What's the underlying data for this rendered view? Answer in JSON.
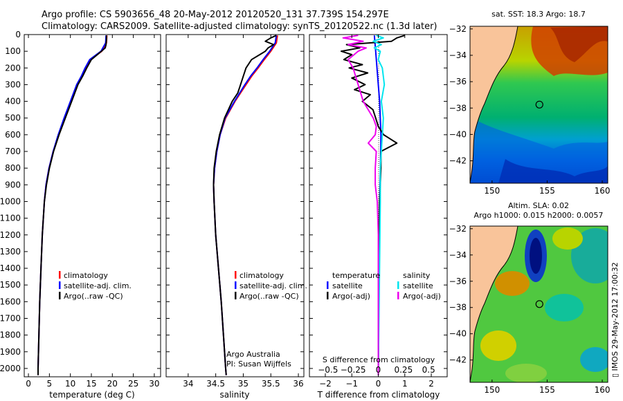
{
  "header": {
    "line1": "Argo profile: CS 5903656_48 20-May-2012 20120520_131 37.739S 154.297E",
    "line2": "Climatology: CARS2009. Satellite-adjusted climatology: synTS_20120522.nc (1.3d later)"
  },
  "colors": {
    "climatology": "#ff0000",
    "satellite": "#0000ff",
    "argo": "#000000",
    "sal_satellite": "#00e5ee",
    "sal_argo": "#ee00ee",
    "land": "#f9c49a"
  },
  "depth_axis": {
    "ylim": [
      0,
      2050
    ],
    "ticks": [
      0,
      100,
      200,
      300,
      400,
      500,
      600,
      700,
      800,
      900,
      1000,
      1100,
      1200,
      1300,
      1400,
      1500,
      1600,
      1700,
      1800,
      1900,
      2000
    ]
  },
  "chart_data": [
    {
      "type": "line",
      "name": "temperature",
      "xlabel": "temperature (deg C)",
      "xlim": [
        -1,
        31.5
      ],
      "xticks": [
        0,
        5,
        10,
        15,
        20,
        25,
        30
      ],
      "legend": {
        "placement": "lower-middle",
        "items": [
          "climatology",
          "satellite-adj. clim.",
          "Argo(..raw -QC)"
        ]
      },
      "series": [
        {
          "name": "climatology",
          "color": "#ff0000",
          "depth": [
            5,
            50,
            100,
            150,
            200,
            250,
            300,
            400,
            500,
            600,
            700,
            800,
            900,
            1000,
            1200,
            1400,
            1600,
            1800,
            2000,
            2040
          ],
          "values": [
            18.7,
            18.6,
            17.5,
            14.8,
            13.6,
            12.7,
            11.6,
            10.1,
            8.6,
            7.2,
            5.9,
            4.9,
            4.2,
            3.8,
            3.3,
            3.0,
            2.7,
            2.5,
            2.3,
            2.3
          ]
        },
        {
          "name": "satellite-adj. clim.",
          "color": "#0000ff",
          "depth": [
            5,
            50,
            100,
            150,
            200,
            250,
            300,
            400,
            500,
            600,
            700,
            800,
            900,
            1000,
            1200,
            1400,
            1600,
            1800,
            2000,
            2040
          ],
          "values": [
            18.5,
            18.4,
            17.3,
            14.6,
            13.5,
            12.6,
            11.5,
            10.0,
            8.5,
            7.1,
            5.9,
            4.9,
            4.2,
            3.8,
            3.3,
            3.0,
            2.7,
            2.5,
            2.3,
            2.3
          ]
        },
        {
          "name": "Argo(..raw -QC)",
          "color": "#000000",
          "depth": [
            5,
            30,
            60,
            80,
            100,
            150,
            200,
            250,
            300,
            400,
            500,
            600,
            700,
            800,
            900,
            1000,
            1200,
            1400,
            1600,
            1800,
            2000,
            2040
          ],
          "values": [
            18.6,
            18.6,
            18.5,
            18.3,
            17.4,
            15.0,
            13.9,
            12.9,
            11.8,
            10.3,
            8.8,
            7.3,
            6.0,
            5.0,
            4.3,
            3.8,
            3.3,
            3.0,
            2.7,
            2.5,
            2.3,
            2.3
          ]
        }
      ]
    },
    {
      "type": "line",
      "name": "salinity",
      "xlabel": "salinity",
      "xlim": [
        33.6,
        36.1
      ],
      "xticks": [
        34,
        34.5,
        35,
        35.5,
        36
      ],
      "legend": {
        "placement": "lower-middle",
        "items": [
          "climatology",
          "satellite-adj. clim.",
          "Argo(..raw -QC)"
        ]
      },
      "annotation": [
        "Argo Australia",
        "PI: Susan Wijffels"
      ],
      "series": [
        {
          "name": "climatology",
          "color": "#ff0000",
          "depth": [
            5,
            50,
            100,
            150,
            200,
            250,
            300,
            400,
            500,
            600,
            700,
            800,
            900,
            1000,
            1200,
            1400,
            1600,
            1800,
            2000,
            2040
          ],
          "values": [
            35.62,
            35.6,
            35.5,
            35.38,
            35.27,
            35.15,
            35.05,
            34.85,
            34.68,
            34.58,
            34.52,
            34.48,
            34.46,
            34.47,
            34.5,
            34.55,
            34.6,
            34.64,
            34.68,
            34.69
          ]
        },
        {
          "name": "satellite-adj. clim.",
          "color": "#0000ff",
          "depth": [
            5,
            50,
            100,
            150,
            200,
            250,
            300,
            400,
            500,
            600,
            700,
            800,
            900,
            1000,
            1200,
            1400,
            1600,
            1800,
            2000,
            2040
          ],
          "values": [
            35.6,
            35.58,
            35.48,
            35.36,
            35.25,
            35.13,
            35.03,
            34.84,
            34.67,
            34.58,
            34.52,
            34.48,
            34.46,
            34.47,
            34.5,
            34.55,
            34.6,
            34.64,
            34.68,
            34.69
          ]
        },
        {
          "name": "Argo(..raw -QC)",
          "color": "#000000",
          "depth": [
            5,
            20,
            40,
            60,
            80,
            100,
            120,
            150,
            200,
            250,
            300,
            350,
            400,
            500,
            600,
            700,
            800,
            900,
            1000,
            1200,
            1400,
            1600,
            1800,
            2000,
            2040
          ],
          "values": [
            35.6,
            35.5,
            35.4,
            35.55,
            35.45,
            35.4,
            35.3,
            35.15,
            35.05,
            35.0,
            34.95,
            34.9,
            34.8,
            34.66,
            34.57,
            34.51,
            34.47,
            34.46,
            34.47,
            34.5,
            34.55,
            34.6,
            34.64,
            34.68,
            34.69
          ]
        }
      ]
    },
    {
      "type": "line",
      "name": "differences",
      "xlabel_bottom": "T difference from climatology",
      "xlabel_top": "S difference from climatology",
      "xlim_T": [
        -2.6,
        2.6
      ],
      "xticks_T": [
        -2,
        -1,
        0,
        1,
        2
      ],
      "xticks_S": [
        -0.5,
        -0.25,
        0,
        0.25,
        0.5
      ],
      "xtick_labels_S": [
        "−0.5",
        "−0.25",
        "0",
        "0.25",
        "0.5"
      ],
      "legend_left": {
        "title": "temperature",
        "items": [
          "satellite",
          "Argo(-adj)"
        ]
      },
      "legend_right": {
        "title": "salinity",
        "items": [
          "satellite",
          "Argo(-adj)"
        ]
      },
      "series": [
        {
          "name": "T satellite",
          "color": "#0000ff",
          "depth": [
            5,
            100,
            200,
            400,
            600,
            800,
            1000,
            1500,
            2040
          ],
          "values": [
            -0.15,
            -0.1,
            -0.05,
            0.05,
            0.1,
            0.08,
            0.05,
            0.02,
            0.0
          ]
        },
        {
          "name": "T Argo(-adj)",
          "color": "#000000",
          "depth": [
            5,
            20,
            40,
            60,
            80,
            100,
            120,
            150,
            180,
            200,
            230,
            260,
            300,
            330,
            360,
            400,
            450,
            500,
            550,
            600,
            620,
            650,
            700,
            800,
            1000,
            1500,
            2040
          ],
          "values": [
            1.0,
            0.7,
            0.5,
            -1.2,
            -0.7,
            -1.4,
            -1.0,
            -1.3,
            -0.6,
            -1.1,
            -0.4,
            -1.0,
            -0.5,
            -0.9,
            -0.3,
            -0.6,
            -0.2,
            -0.1,
            0.0,
            0.2,
            0.4,
            0.7,
            0.1,
            0.1,
            0.05,
            0.02,
            0.0
          ]
        },
        {
          "name": "S satellite",
          "color": "#00e5ee",
          "depth": [
            5,
            20,
            40,
            60,
            80,
            100,
            150,
            200,
            300,
            400,
            500,
            600,
            800,
            1000,
            1500,
            2040
          ],
          "values": [
            -0.02,
            0.05,
            -0.05,
            0.03,
            -0.04,
            0.02,
            0.0,
            0.04,
            0.06,
            0.03,
            0.05,
            0.04,
            0.02,
            0.02,
            0.01,
            0.0
          ]
        },
        {
          "name": "S Argo(-adj)",
          "color": "#ee00ee",
          "depth": [
            5,
            20,
            40,
            60,
            80,
            100,
            150,
            200,
            300,
            400,
            500,
            550,
            600,
            650,
            700,
            800,
            900,
            1000,
            1200,
            1500,
            2040
          ],
          "values": [
            -0.2,
            -0.35,
            -0.15,
            -0.3,
            -0.12,
            -0.2,
            -0.3,
            -0.25,
            -0.2,
            -0.15,
            -0.05,
            -0.02,
            -0.03,
            -0.1,
            -0.02,
            -0.03,
            -0.03,
            -0.01,
            0.0,
            0.0,
            0.0
          ]
        }
      ]
    },
    {
      "type": "heatmap",
      "name": "sst-map",
      "title": "sat. SST: 18.3  Argo: 18.7",
      "xlim": [
        148,
        160.5
      ],
      "ylim": [
        -43.7,
        -31.8
      ],
      "xticks": [
        150,
        155,
        160
      ],
      "yticks": [
        -32,
        -34,
        -36,
        -38,
        -40,
        -42
      ],
      "marker": {
        "lon": 154.297,
        "lat": -37.739
      }
    },
    {
      "type": "heatmap",
      "name": "sla-map",
      "title": "Altim. SLA: 0.02",
      "subtitle": "Argo h1000: 0.015  h2000: 0.0057",
      "xlim": [
        148,
        160.5
      ],
      "ylim": [
        -43.7,
        -31.8
      ],
      "xticks": [
        150,
        155,
        160
      ],
      "yticks": [
        -32,
        -34,
        -36,
        -38,
        -40,
        -42
      ],
      "marker": {
        "lon": 154.297,
        "lat": -37.739
      }
    }
  ],
  "footer": {
    "imos_stamp": "▯ IMOS 29-May-2012 17:00:32"
  }
}
